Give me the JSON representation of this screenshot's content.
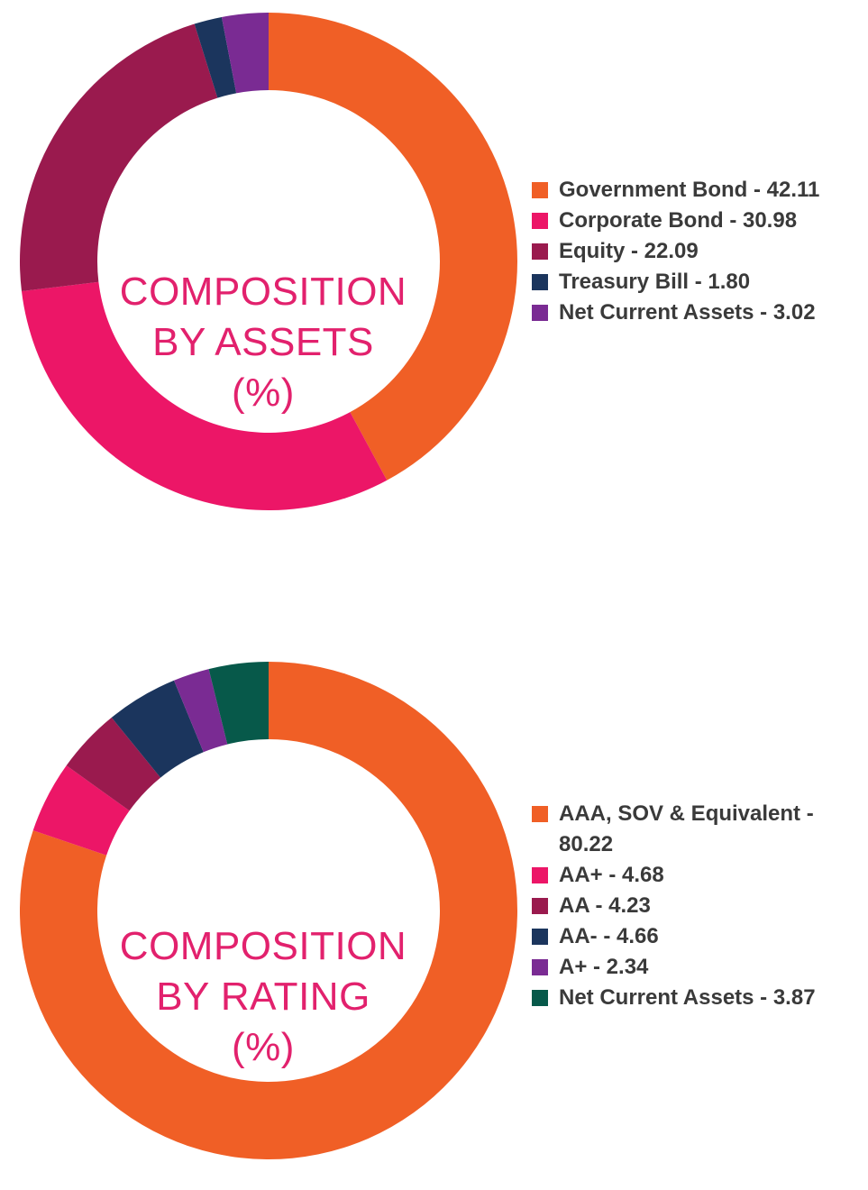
{
  "chart_data": [
    {
      "type": "pie",
      "title": "COMPOSITION BY ASSETS (%)",
      "title_lines": [
        "COMPOSITION",
        "BY ASSETS",
        "(%)"
      ],
      "categories": [
        "Government Bond",
        "Corporate Bond",
        "Equity",
        "Treasury Bill",
        "Net Current Assets"
      ],
      "values": [
        42.11,
        30.98,
        22.09,
        1.8,
        3.02
      ],
      "labels": [
        "Government Bond - 42.11",
        "Corporate Bond - 30.98",
        "Equity - 22.09",
        "Treasury Bill - 1.80",
        "Net Current Assets - 3.02"
      ],
      "colors": [
        "#f05f26",
        "#ec1667",
        "#9a1a4e",
        "#1b355d",
        "#7a2b93"
      ],
      "legend_position": "right"
    },
    {
      "type": "pie",
      "title": "COMPOSITION BY RATING (%)",
      "title_lines": [
        "COMPOSITION",
        "BY RATING",
        "(%)"
      ],
      "categories": [
        "AAA, SOV & Equivalent",
        "AA+",
        "AA",
        "AA-",
        "A+",
        "Net Current Assets"
      ],
      "values": [
        80.22,
        4.68,
        4.23,
        4.66,
        2.34,
        3.87
      ],
      "labels": [
        "AAA, SOV & Equivalent - 80.22",
        "AA+ - 4.68",
        "AA - 4.23",
        "AA- - 4.66",
        "A+ - 2.34",
        "Net Current Assets - 3.87"
      ],
      "colors": [
        "#f05f26",
        "#ec1667",
        "#9a1a4e",
        "#1b355d",
        "#7a2b93",
        "#07594a"
      ],
      "legend_position": "right"
    }
  ]
}
